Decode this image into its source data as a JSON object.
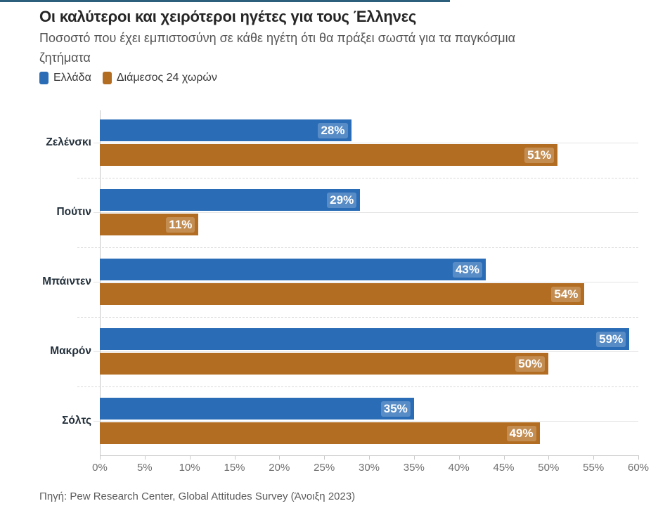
{
  "header": {
    "title": "Οι καλύτεροι και χειρότεροι ηγέτες για τους Έλληνες",
    "subtitle": "Ποσοστό που έχει εμπιστοσύνη σε κάθε ηγέτη ότι θα πράξει σωστά για τα παγκόσμια ζητήματα",
    "subtitle_lines": [
      "Ποσοστό που έχει εμπιστοσύνη σε κάθε ηγέτη ότι θα πράξει σωστά για τα παγκόσμια",
      "ζητήματα"
    ]
  },
  "legend": {
    "items": [
      {
        "label": "Ελλάδα",
        "color": "#2a6cb6"
      },
      {
        "label": "Διάμεσος 24 χωρών",
        "color": "#b36d22"
      }
    ]
  },
  "chart_data": {
    "type": "bar",
    "orientation": "horizontal",
    "title": "Οι καλύτεροι και χειρότεροι ηγέτες για τους Έλληνες",
    "subtitle": "Ποσοστό που έχει εμπιστοσύνη σε κάθε ηγέτη ότι θα πράξει σωστά για τα παγκόσμια ζητήματα",
    "categories": [
      "Ζελένσκι",
      "Πούτιν",
      "Μπάιντεν",
      "Μακρόν",
      "Σόλτς"
    ],
    "series": [
      {
        "name": "Ελλάδα",
        "color": "#2a6cb6",
        "values": [
          28,
          29,
          43,
          59,
          35
        ]
      },
      {
        "name": "Διάμεσος 24 χωρών",
        "color": "#b36d22",
        "values": [
          51,
          11,
          54,
          50,
          49
        ]
      }
    ],
    "value_suffix": "%",
    "xlim": [
      0,
      60
    ],
    "x_ticks": [
      0,
      5,
      10,
      15,
      20,
      25,
      30,
      35,
      40,
      45,
      50,
      55,
      60
    ],
    "tick_suffix": "%",
    "xlabel": "",
    "ylabel": "",
    "grid": "category-lines-and-dashed-group-separators",
    "legend_position": "top-left",
    "value_labels": "inside-end-white-bold"
  },
  "footer": {
    "source": "Πηγή: Pew Research Center, Global Attitudes Survey (Άνοιξη 2023)"
  },
  "colors": {
    "accent_rule": "#2c5f7b",
    "axis_line": "#c8c8c8",
    "grid_line": "#e4e4e4",
    "separator_line": "#d9d9d9"
  }
}
